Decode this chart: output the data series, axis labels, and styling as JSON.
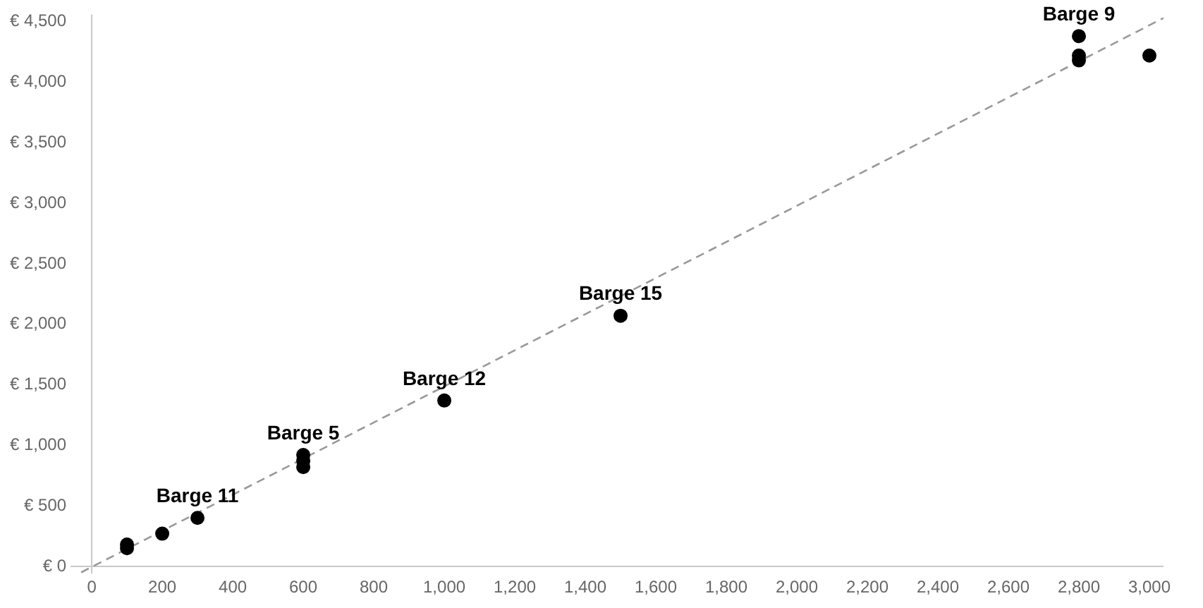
{
  "chart_data": {
    "type": "scatter",
    "marker": "circle",
    "grid": false,
    "legend": false,
    "xlim": [
      -60,
      3040
    ],
    "ylim": [
      -60,
      4560
    ],
    "xticks": [
      0,
      200,
      400,
      600,
      800,
      {
        "value": 1000,
        "label": "1,000"
      },
      {
        "value": 1200,
        "label": "1,200"
      },
      {
        "value": 1400,
        "label": "1,400"
      },
      {
        "value": 1600,
        "label": "1,600"
      },
      {
        "value": 1800,
        "label": "1,800"
      },
      {
        "value": 2000,
        "label": "2,000"
      },
      {
        "value": 2200,
        "label": "2,200"
      },
      {
        "value": 2400,
        "label": "2,400"
      },
      {
        "value": 2600,
        "label": "2,600"
      },
      {
        "value": 2800,
        "label": "2,800"
      },
      {
        "value": 3000,
        "label": "3,000"
      }
    ],
    "yticks": [
      {
        "value": 0,
        "label": "€ 0"
      },
      {
        "value": 500,
        "label": "€ 500"
      },
      {
        "value": 1000,
        "label": "€ 1,000"
      },
      {
        "value": 1500,
        "label": "€ 1,500"
      },
      {
        "value": 2000,
        "label": "€ 2,000"
      },
      {
        "value": 2500,
        "label": "€ 2,500"
      },
      {
        "value": 3000,
        "label": "€ 3,000"
      },
      {
        "value": 3500,
        "label": "€ 3,500"
      },
      {
        "value": 4000,
        "label": "€ 4,000"
      },
      {
        "value": 4500,
        "label": "€ 4,500"
      }
    ],
    "series": [
      {
        "type": "scatter",
        "color": "#000000",
        "x": [
          100,
          100,
          200,
          300,
          600,
          600,
          600,
          1000,
          1500,
          2800,
          2800,
          2800,
          3000
        ],
        "values": [
          150,
          180,
          270,
          400,
          820,
          870,
          920,
          1370,
          2070,
          4380,
          4180,
          4220,
          4220
        ]
      },
      {
        "type": "line",
        "color": "#999999",
        "line_style": "dashed",
        "marker": "none",
        "x": [
          -30,
          3040
        ],
        "values": [
          -50,
          4530
        ]
      }
    ],
    "annotations": [
      {
        "text": "Barge 9",
        "x": 2800,
        "y": 4380
      },
      {
        "text": "Barge 15",
        "x": 1500,
        "y": 2070
      },
      {
        "text": "Barge 12",
        "x": 1000,
        "y": 1370
      },
      {
        "text": "Barge 5",
        "x": 600,
        "y": 920
      },
      {
        "text": "Barge 11",
        "x": 300,
        "y": 400
      }
    ]
  }
}
